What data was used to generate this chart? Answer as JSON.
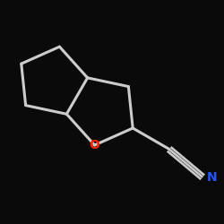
{
  "background_color": "#0a0a0a",
  "bond_color": "#000000",
  "line_color": "#1a1a1a",
  "O_color": "#ff2200",
  "N_color": "#2255ff",
  "O_label": "O",
  "N_label": "N",
  "line_width": 2.2,
  "figsize": [
    2.5,
    2.5
  ],
  "dpi": 100
}
